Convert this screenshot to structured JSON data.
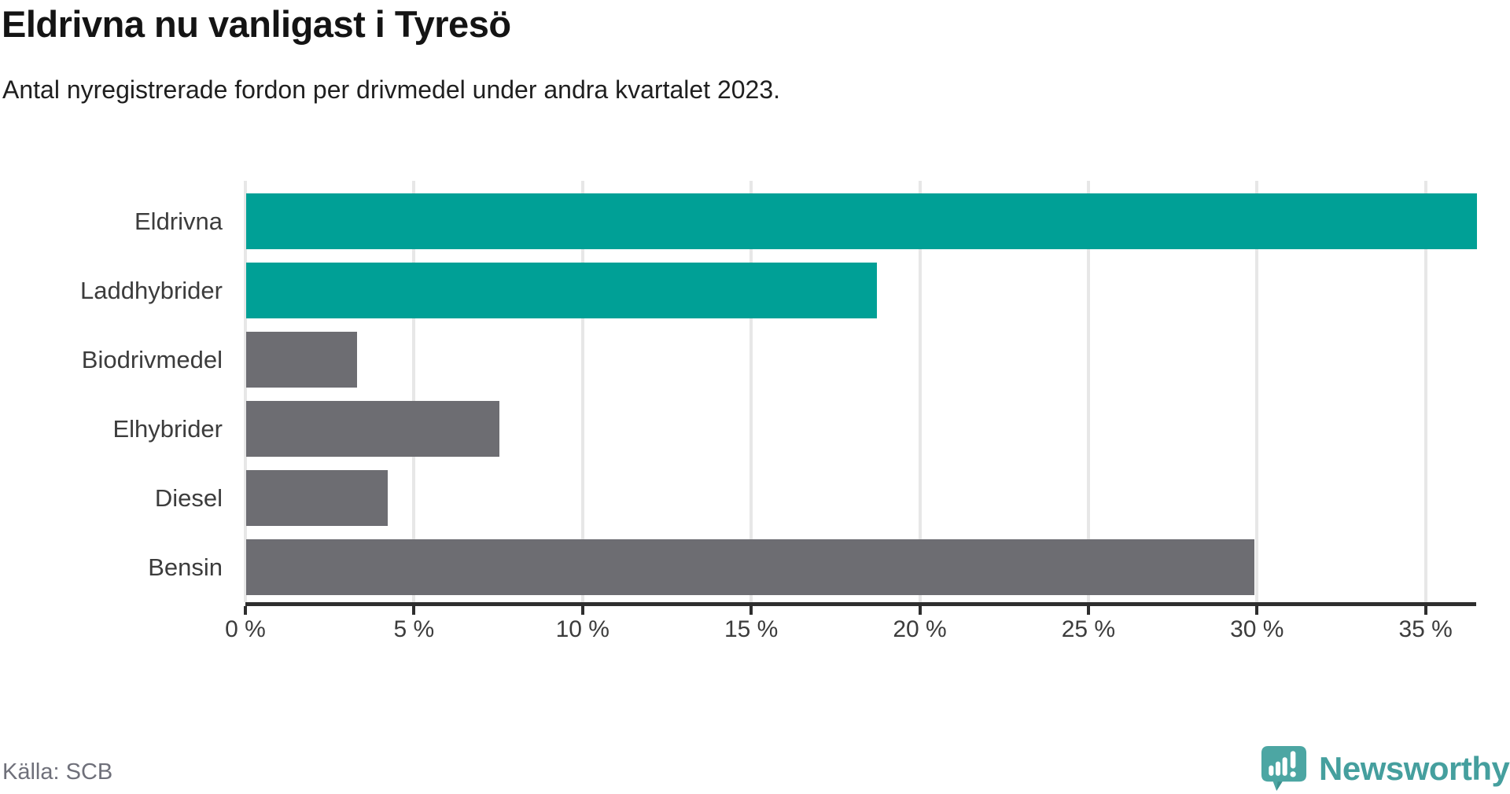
{
  "header": {
    "title": "Eldrivna nu vanligast i Tyresö",
    "subtitle": "Antal nyregistrerade fordon per drivmedel under andra kvartalet 2023."
  },
  "chart_data": {
    "type": "bar",
    "orientation": "horizontal",
    "title": "Eldrivna nu vanligast i Tyresö",
    "subtitle": "Antal nyregistrerade fordon per drivmedel under andra kvartalet 2023.",
    "categories": [
      "Eldrivna",
      "Laddhybrider",
      "Biodrivmedel",
      "Elhybrider",
      "Diesel",
      "Bensin"
    ],
    "values": [
      36.5,
      18.7,
      3.3,
      7.5,
      4.2,
      29.9
    ],
    "unit": "%",
    "xlabel": "",
    "ylabel": "",
    "xlim": [
      0,
      36.5
    ],
    "x_ticks": [
      0,
      5,
      10,
      15,
      20,
      25,
      30,
      35
    ],
    "x_tick_labels": [
      "0 %",
      "5 %",
      "10 %",
      "15 %",
      "20 %",
      "25 %",
      "30 %",
      "35 %"
    ],
    "bar_colors": [
      "#00a096",
      "#00a096",
      "#6d6d72",
      "#6d6d72",
      "#6d6d72",
      "#6d6d72"
    ],
    "grid": "vertical-only",
    "legend": "none"
  },
  "colors": {
    "accent_teal": "#00a096",
    "neutral_gray": "#6d6d72",
    "axis_line": "#2e2e2e",
    "gridline": "#e7e7e7",
    "logo_bubble": "#4ca6a3",
    "logo_text": "#459f9e"
  },
  "icons": {
    "logo": "newsworthy-speech-bubble-bar-chart-icon"
  },
  "footer": {
    "source": "Källa: SCB",
    "brand": "Newsworthy"
  }
}
